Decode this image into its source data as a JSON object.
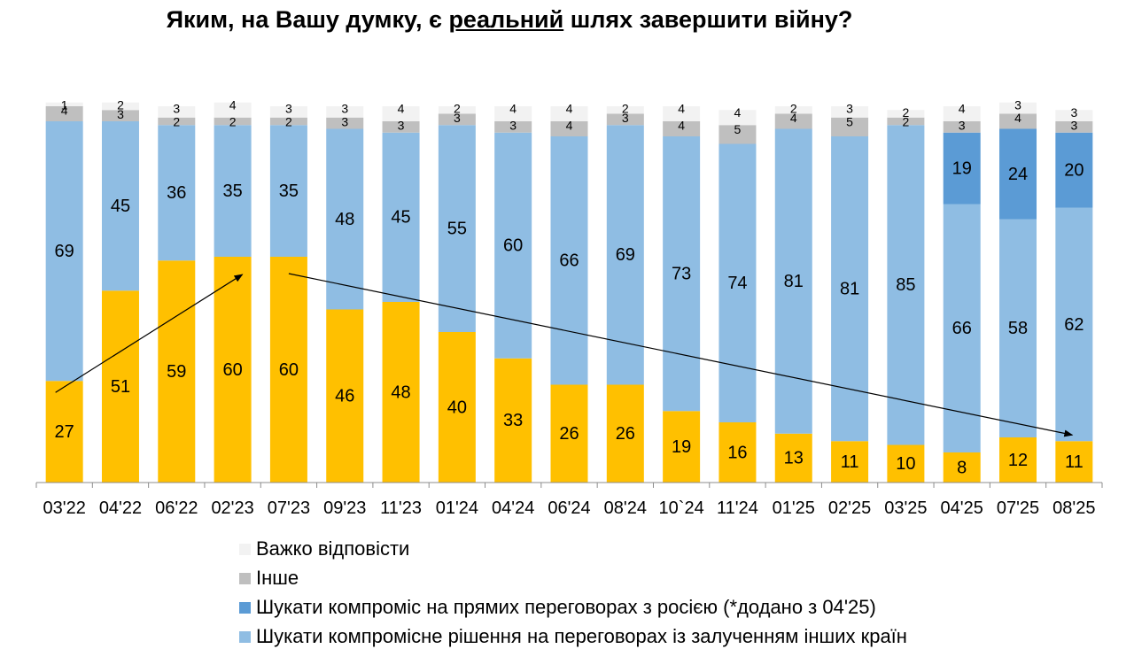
{
  "title": {
    "before": "Яким, на Вашу думку, є ",
    "underlined": "реальний",
    "after": " шлях завершити війну?"
  },
  "legend": [
    {
      "label": "Важко відповісти",
      "color": "#f2f2f2"
    },
    {
      "label": "Інше",
      "color": "#bfbfbf"
    },
    {
      "label": "Шукати компроміс на прямих переговорах з росією (*додано з 04'25)",
      "color": "#5b9bd5"
    },
    {
      "label": "Шукати компромісне рішення на переговорах із залученням інших країн",
      "color": "#8fbde3"
    }
  ],
  "chart_data": {
    "type": "bar",
    "stacked": true,
    "ylim": [
      0,
      100
    ],
    "categories": [
      "03'22",
      "04'22",
      "06'22",
      "02'23",
      "07'23",
      "09'23",
      "11'23",
      "01'24",
      "04'24",
      "06'24",
      "08'24",
      "10`24",
      "11'24",
      "01'25",
      "02'25",
      "03'25",
      "04'25",
      "07'25",
      "08'25"
    ],
    "series": [
      {
        "key": "yellow",
        "color": "#ffc000",
        "values": [
          27,
          51,
          59,
          60,
          60,
          46,
          48,
          40,
          33,
          26,
          26,
          19,
          16,
          13,
          11,
          10,
          8,
          12,
          11
        ]
      },
      {
        "key": "light_blue",
        "color": "#8fbde3",
        "values": [
          69,
          45,
          36,
          35,
          35,
          48,
          45,
          55,
          60,
          66,
          69,
          73,
          74,
          81,
          81,
          85,
          66,
          58,
          62
        ]
      },
      {
        "key": "dark_blue",
        "color": "#5b9bd5",
        "values": [
          null,
          null,
          null,
          null,
          null,
          null,
          null,
          null,
          null,
          null,
          null,
          null,
          null,
          null,
          null,
          null,
          19,
          24,
          20
        ]
      },
      {
        "key": "gray",
        "color": "#bfbfbf",
        "values": [
          4,
          3,
          2,
          2,
          2,
          3,
          3,
          3,
          3,
          4,
          3,
          4,
          5,
          4,
          5,
          2,
          3,
          4,
          3
        ]
      },
      {
        "key": "light_gray",
        "color": "#f2f2f2",
        "values": [
          1,
          2,
          3,
          4,
          3,
          3,
          4,
          2,
          4,
          4,
          2,
          4,
          4,
          2,
          3,
          2,
          4,
          3,
          3
        ]
      }
    ],
    "trend_arrows": [
      {
        "from": {
          "category": "03'22",
          "value": 27
        },
        "to": {
          "category": "02'23",
          "value": 60
        }
      },
      {
        "from": {
          "category": "07'23",
          "value": 60
        },
        "to": {
          "category": "08'25",
          "value": 11
        }
      }
    ]
  }
}
